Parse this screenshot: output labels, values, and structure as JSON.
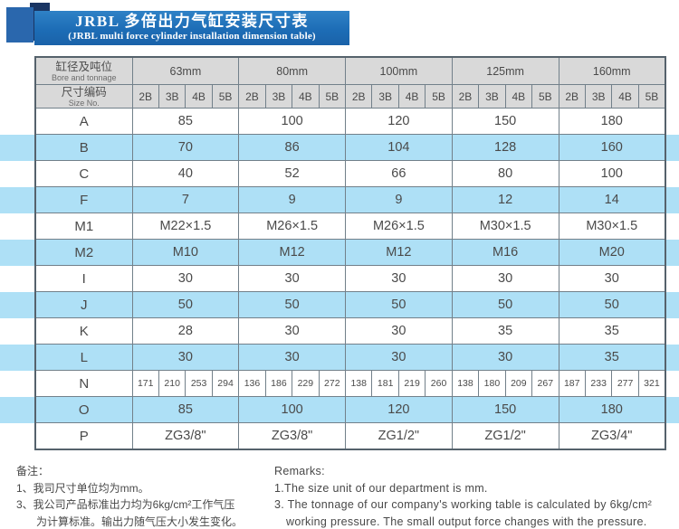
{
  "title": {
    "zh": "JRBL 多倍出力气缸安装尺寸表",
    "en": "(JRBL multi force cylinder installation dimension table)"
  },
  "colors": {
    "banner_blue": "#1d6db6",
    "square_blue": "#2a67ad",
    "navy": "#1a3563",
    "stripe_blue": "#aee0f6",
    "header_gray": "#d9d9d9",
    "grid_line": "#72808a",
    "text": "#4a4a4a"
  },
  "table": {
    "corner": {
      "zh": "缸径及吨位",
      "en": "Bore and tonnage"
    },
    "size_no": {
      "zh": "尺寸编码",
      "en": "Size No."
    },
    "bores": [
      "63mm",
      "80mm",
      "100mm",
      "125mm",
      "160mm"
    ],
    "codes": [
      "2B",
      "3B",
      "4B",
      "5B"
    ],
    "rows": [
      {
        "label": "A",
        "shade": false,
        "per_code": false,
        "values": [
          "85",
          "100",
          "120",
          "150",
          "180"
        ]
      },
      {
        "label": "B",
        "shade": true,
        "per_code": false,
        "values": [
          "70",
          "86",
          "104",
          "128",
          "160"
        ]
      },
      {
        "label": "C",
        "shade": false,
        "per_code": false,
        "values": [
          "40",
          "52",
          "66",
          "80",
          "100"
        ]
      },
      {
        "label": "F",
        "shade": true,
        "per_code": false,
        "values": [
          "7",
          "9",
          "9",
          "12",
          "14"
        ]
      },
      {
        "label": "M1",
        "shade": false,
        "per_code": false,
        "values": [
          "M22×1.5",
          "M26×1.5",
          "M26×1.5",
          "M30×1.5",
          "M30×1.5"
        ]
      },
      {
        "label": "M2",
        "shade": true,
        "per_code": false,
        "values": [
          "M10",
          "M12",
          "M12",
          "M16",
          "M20"
        ]
      },
      {
        "label": "I",
        "shade": false,
        "per_code": false,
        "values": [
          "30",
          "30",
          "30",
          "30",
          "30"
        ]
      },
      {
        "label": "J",
        "shade": true,
        "per_code": false,
        "values": [
          "50",
          "50",
          "50",
          "50",
          "50"
        ]
      },
      {
        "label": "K",
        "shade": false,
        "per_code": false,
        "values": [
          "28",
          "30",
          "30",
          "35",
          "35"
        ]
      },
      {
        "label": "L",
        "shade": true,
        "per_code": false,
        "values": [
          "30",
          "30",
          "30",
          "30",
          "35"
        ]
      },
      {
        "label": "N",
        "shade": false,
        "per_code": true,
        "values": [
          "171",
          "210",
          "253",
          "294",
          "136",
          "186",
          "229",
          "272",
          "138",
          "181",
          "219",
          "260",
          "138",
          "180",
          "209",
          "267",
          "187",
          "233",
          "277",
          "321"
        ]
      },
      {
        "label": "O",
        "shade": true,
        "per_code": false,
        "values": [
          "85",
          "100",
          "120",
          "150",
          "180"
        ]
      },
      {
        "label": "P",
        "shade": false,
        "per_code": false,
        "values": [
          "ZG3/8\"",
          "ZG3/8\"",
          "ZG1/2\"",
          "ZG1/2\"",
          "ZG3/4\""
        ]
      }
    ]
  },
  "notes_left": {
    "title": "备注：",
    "lines": [
      "1、我司尺寸单位均为mm。",
      "3、我公司产品标准出力均为6kg/cm²工作气压",
      "为计算标准。输出力随气压大小发生变化。"
    ]
  },
  "notes_right": {
    "title": "Remarks:",
    "lines": [
      "1.The size unit of our department is mm.",
      "3. The tonnage of our company's working table is calculated by 6kg/cm²",
      "working pressure. The small output force changes with the pressure."
    ]
  }
}
